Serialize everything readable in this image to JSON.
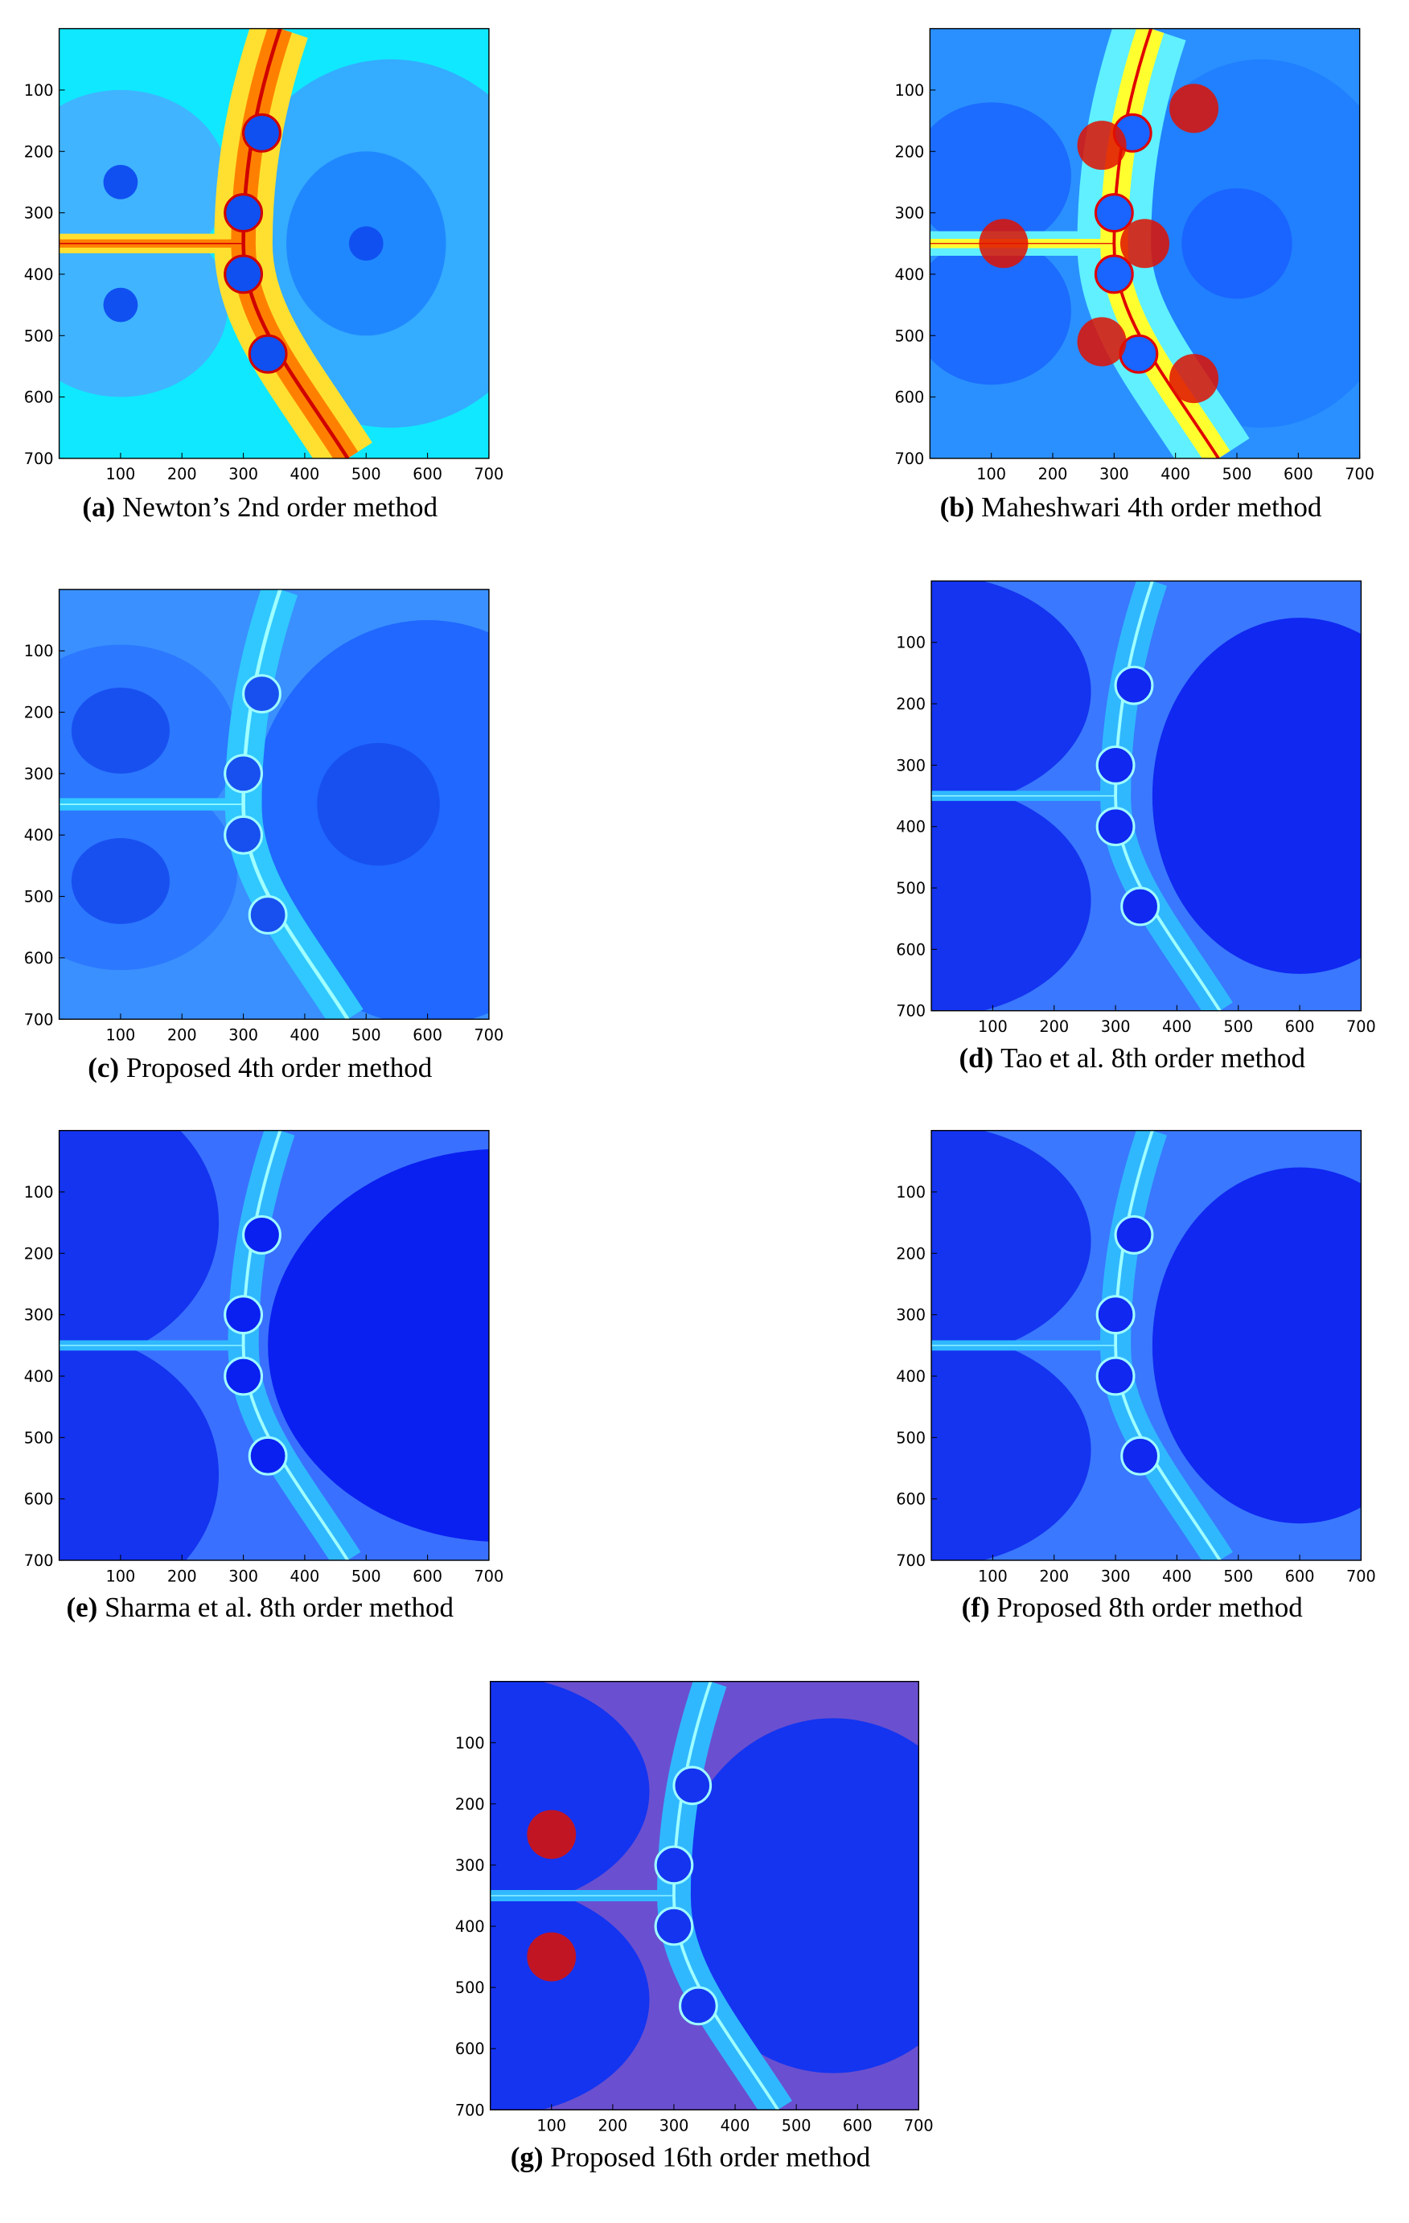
{
  "figure": {
    "xlim": [
      0,
      700
    ],
    "ylim": [
      0,
      700
    ],
    "xticks": [
      100,
      200,
      300,
      400,
      500,
      600,
      700
    ],
    "yticks": [
      100,
      200,
      300,
      400,
      500,
      600,
      700
    ],
    "panels": [
      {
        "label": "(a)",
        "caption": "Newton’s 2nd order method"
      },
      {
        "label": "(b)",
        "caption": "Maheshwari 4th order method"
      },
      {
        "label": "(c)",
        "caption": "Proposed 4th order method"
      },
      {
        "label": "(d)",
        "caption": "Tao et al. 8th order method"
      },
      {
        "label": "(e)",
        "caption": "Sharma et al. 8th order method"
      },
      {
        "label": "(f)",
        "caption": "Proposed 8th order method"
      },
      {
        "label": "(g)",
        "caption": "Proposed 16th order method"
      }
    ]
  }
}
